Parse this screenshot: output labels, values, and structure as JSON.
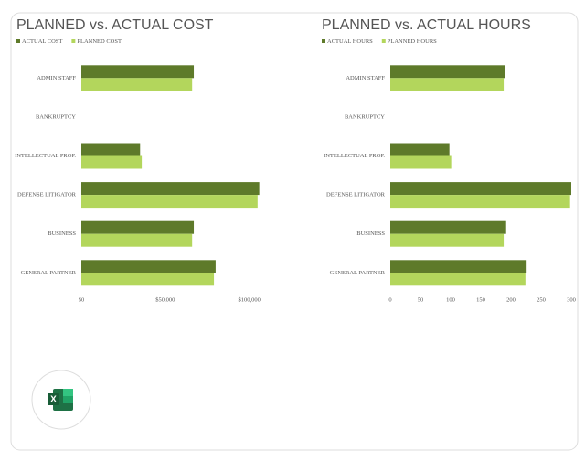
{
  "chart_data": [
    {
      "type": "hbar",
      "title": "PLANNED vs. ACTUAL COST",
      "categories": [
        "ADMIN STAFF",
        "BANKRUPTCY",
        "INTELLECTUAL PROP.",
        "DEFENSE LITIGATOR",
        "BUSINESS",
        "GENERAL PARTNER"
      ],
      "series": [
        {
          "name": "ACTUAL COST",
          "color": "#5e7a2a",
          "values": [
            67000,
            0,
            35000,
            106000,
            67000,
            80000
          ]
        },
        {
          "name": "PLANNED COST",
          "color": "#b3d65c",
          "values": [
            66000,
            0,
            36000,
            105000,
            66000,
            79000
          ]
        }
      ],
      "xlim": [
        0,
        110000
      ],
      "xticks": [
        {
          "value": 0,
          "label": "$0"
        },
        {
          "value": 50000,
          "label": "$50,000"
        },
        {
          "value": 100000,
          "label": "$100,000"
        }
      ]
    },
    {
      "type": "hbar",
      "title": "PLANNED vs. ACTUAL HOURS",
      "categories": [
        "ADMIN STAFF",
        "BANKRUPTCY",
        "INTELLECTUAL PROP.",
        "DEFENSE LITIGATOR",
        "BUSINESS",
        "GENERAL PARTNER"
      ],
      "series": [
        {
          "name": "ACTUAL HOURS",
          "color": "#5e7a2a",
          "values": [
            190,
            0,
            98,
            300,
            192,
            226
          ]
        },
        {
          "name": "PLANNED HOURS",
          "color": "#b3d65c",
          "values": [
            188,
            0,
            101,
            298,
            188,
            224
          ]
        }
      ],
      "xlim": [
        0,
        300
      ],
      "xticks": [
        0,
        50,
        100,
        150,
        200,
        250,
        300
      ]
    }
  ]
}
